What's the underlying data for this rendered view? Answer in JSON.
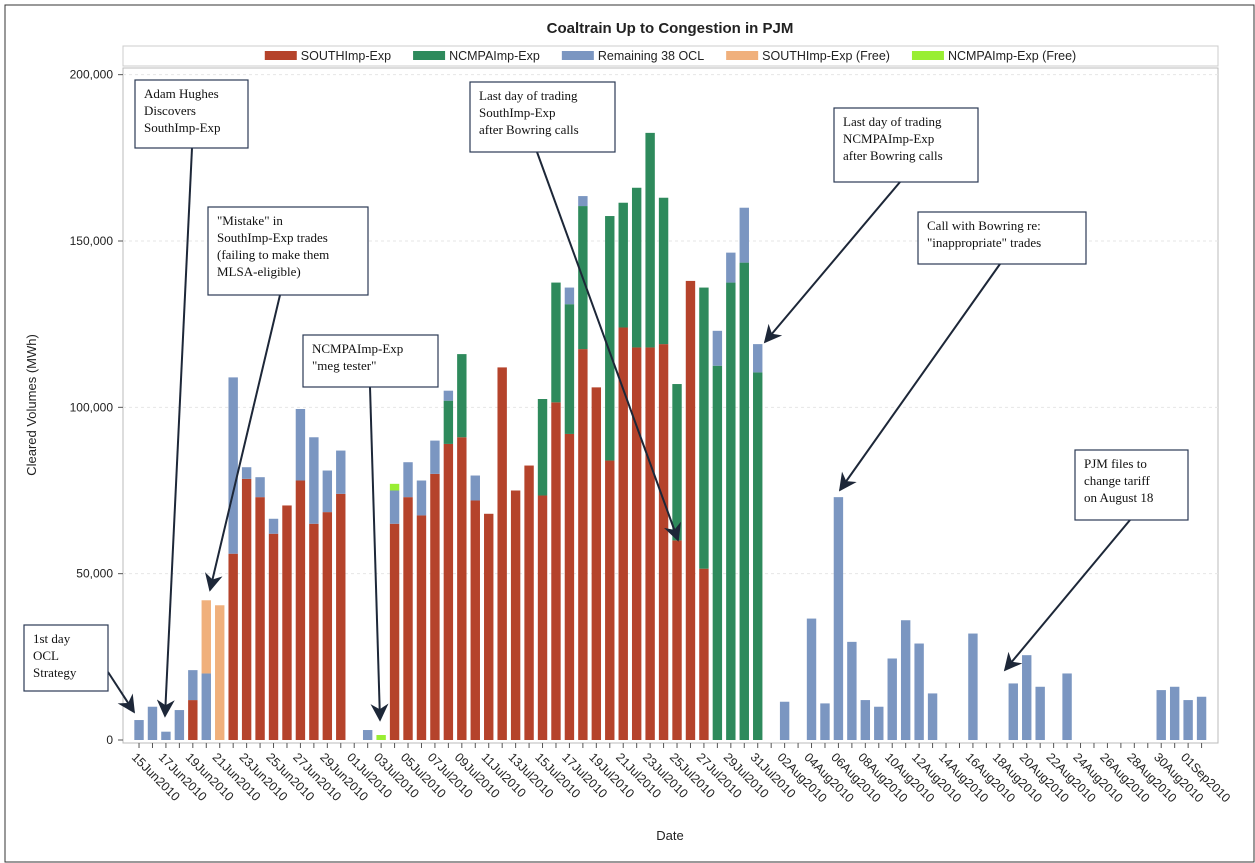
{
  "chart_data": {
    "type": "bar",
    "title": "Coaltrain Up to Congestion in PJM",
    "x_label": "Date",
    "y_label": "Cleared Volumes (MWh)",
    "stacked": true,
    "grid": true,
    "legend": "top",
    "ylim": [
      0,
      202000
    ],
    "yticks": [
      0,
      {
        "value": 50000,
        "label": "50,000"
      },
      {
        "value": 100000,
        "label": "100,000"
      },
      {
        "value": 150000,
        "label": "150,000"
      },
      {
        "value": 200000,
        "label": "200,000"
      }
    ],
    "categories": [
      "15Jun2010",
      null,
      "17Jun2010",
      null,
      "19Jun2010",
      null,
      "21Jun2010",
      null,
      "23Jun2010",
      null,
      "25Jun2010",
      null,
      "27Jun2010",
      null,
      "29Jun2010",
      null,
      "01Jul2010",
      null,
      "03Jul2010",
      null,
      "05Jul2010",
      null,
      "07Jul2010",
      null,
      "09Jul2010",
      null,
      "11Jul2010",
      null,
      "13Jul2010",
      null,
      "15Jul2010",
      null,
      "17Jul2010",
      null,
      "19Jul2010",
      null,
      "21Jul2010",
      null,
      "23Jul2010",
      null,
      "25Jul2010",
      null,
      "27Jul2010",
      null,
      "29Jul2010",
      null,
      "31Jul2010",
      null,
      "02Aug2010",
      null,
      "04Aug2010",
      null,
      "06Aug2010",
      null,
      "08Aug2010",
      null,
      "10Aug2010",
      null,
      "12Aug2010",
      null,
      "14Aug2010",
      null,
      "16Aug2010",
      null,
      "18Aug2010",
      null,
      "20Aug2010",
      null,
      "22Aug2010",
      null,
      "24Aug2010",
      null,
      "26Aug2010",
      null,
      "28Aug2010",
      null,
      "30Aug2010",
      null,
      "01Sep2010",
      null
    ],
    "series": [
      {
        "name": "SOUTHImp-Exp",
        "color": "#b5432b",
        "values": [
          null,
          null,
          null,
          null,
          12000,
          null,
          null,
          56000,
          78500,
          73000,
          62000,
          70500,
          78000,
          65000,
          68500,
          74000,
          null,
          null,
          null,
          65000,
          73000,
          67500,
          80000,
          89000,
          91000,
          72000,
          68000,
          112000,
          75000,
          82500,
          73500,
          101500,
          92000,
          117500,
          106000,
          84000,
          124000,
          118000,
          118000,
          119000,
          60000,
          138000,
          51500,
          null,
          null,
          null,
          null,
          null,
          null,
          null,
          null,
          null,
          null,
          null,
          null,
          null,
          null,
          null,
          null,
          null,
          null,
          null,
          null,
          null,
          null,
          null,
          null,
          null,
          null,
          null,
          null,
          null,
          null,
          null,
          null,
          null,
          null,
          null,
          null,
          null
        ]
      },
      {
        "name": "NCMPAImp-Exp",
        "color": "#2e8a5c",
        "values": [
          null,
          null,
          null,
          null,
          null,
          null,
          null,
          null,
          null,
          null,
          null,
          null,
          null,
          null,
          null,
          null,
          null,
          null,
          null,
          null,
          null,
          null,
          null,
          13000,
          25000,
          null,
          null,
          null,
          null,
          null,
          29000,
          36000,
          39000,
          43000,
          null,
          73500,
          37500,
          48000,
          64500,
          44000,
          47000,
          null,
          84500,
          112500,
          137500,
          143500,
          110500,
          null,
          null,
          null,
          null,
          null,
          null,
          null,
          null,
          null,
          null,
          null,
          null,
          null,
          null,
          null,
          null,
          null,
          null,
          null,
          null,
          null,
          null,
          null,
          null,
          null,
          null,
          null,
          null,
          null,
          null,
          null,
          null,
          null
        ]
      },
      {
        "name": "Remaining 38 OCL",
        "color": "#7b96c1",
        "values": [
          6000,
          10000,
          2500,
          9000,
          9000,
          20000,
          null,
          53000,
          3500,
          6000,
          4500,
          null,
          21500,
          26000,
          12500,
          13000,
          null,
          3000,
          null,
          10000,
          10500,
          10500,
          10000,
          3000,
          null,
          7500,
          null,
          null,
          null,
          null,
          null,
          null,
          5000,
          3000,
          null,
          null,
          null,
          null,
          null,
          null,
          null,
          null,
          null,
          10500,
          9000,
          16500,
          8500,
          null,
          11500,
          null,
          36500,
          11000,
          73000,
          29500,
          12000,
          10000,
          24500,
          36000,
          29000,
          14000,
          null,
          null,
          32000,
          null,
          null,
          17000,
          25500,
          16000,
          null,
          20000,
          null,
          null,
          null,
          null,
          null,
          null,
          15000,
          16000,
          12000,
          13000
        ]
      },
      {
        "name": "SOUTHImp-Exp (Free)",
        "color": "#f0b07c",
        "values": [
          null,
          null,
          null,
          null,
          null,
          22000,
          40500,
          null,
          null,
          null,
          null,
          null,
          null,
          null,
          null,
          null,
          null,
          null,
          null,
          null,
          null,
          null,
          null,
          null,
          null,
          null,
          null,
          null,
          null,
          null,
          null,
          null,
          null,
          null,
          null,
          null,
          null,
          null,
          null,
          null,
          null,
          null,
          null,
          null,
          null,
          null,
          null,
          null,
          null,
          null,
          null,
          null,
          null,
          null,
          null,
          null,
          null,
          null,
          null,
          null,
          null,
          null,
          null,
          null,
          null,
          null,
          null,
          null,
          null,
          null,
          null,
          null,
          null,
          null,
          null,
          null,
          null,
          null,
          null,
          null
        ]
      },
      {
        "name": "NCMPAImp-Exp (Free)",
        "color": "#99ee33",
        "values": [
          null,
          null,
          null,
          null,
          null,
          null,
          null,
          null,
          null,
          null,
          null,
          null,
          null,
          null,
          null,
          null,
          null,
          null,
          1500,
          2000,
          null,
          null,
          null,
          null,
          null,
          null,
          null,
          null,
          null,
          null,
          null,
          null,
          null,
          null,
          null,
          null,
          null,
          null,
          null,
          null,
          null,
          null,
          null,
          null,
          null,
          null,
          null,
          null,
          null,
          null,
          null,
          null,
          null,
          null,
          null,
          null,
          null,
          null,
          null,
          null,
          null,
          null,
          null,
          null,
          null,
          null,
          null,
          null,
          null,
          null,
          null,
          null,
          null,
          null,
          null,
          null,
          null,
          null,
          null,
          null
        ]
      }
    ],
    "annotations": [
      {
        "lines": [
          "1st day",
          "OCL",
          "Strategy"
        ]
      },
      {
        "lines": [
          "Adam Hughes",
          "Discovers",
          "SouthImp-Exp"
        ]
      },
      {
        "lines": [
          "\"Mistake\" in",
          "SouthImp-Exp  trades",
          "(failing to make them",
          "MLSA-eligible)"
        ]
      },
      {
        "lines": [
          "NCMPAImp-Exp",
          "\"meg tester\""
        ]
      },
      {
        "lines": [
          "Last day of trading",
          "SouthImp-Exp",
          "after Bowring calls"
        ]
      },
      {
        "lines": [
          "Last day of trading",
          "NCMPAImp-Exp",
          "after Bowring calls"
        ]
      },
      {
        "lines": [
          "Call  with Bowring re:",
          "\"inappropriate\" trades"
        ]
      },
      {
        "lines": [
          "PJM files to",
          "change tariff",
          "on August 18"
        ]
      }
    ]
  }
}
